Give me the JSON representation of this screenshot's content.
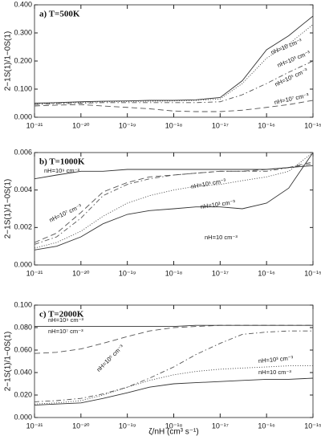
{
  "chart_data": [
    {
      "type": "line",
      "title": "a) T=500K",
      "ylabel": "2−1S(1)/1−0S(1)",
      "xscale": "log",
      "x": [
        1e-21,
        3e-21,
        1e-20,
        3e-20,
        1e-19,
        3e-19,
        1e-18,
        3e-18,
        1e-17,
        3e-17,
        1e-16,
        3e-16,
        1e-15
      ],
      "xlim": [
        1e-21,
        1e-15
      ],
      "xticks": [
        {
          "value": 1e-21,
          "label": "10⁻²¹"
        },
        {
          "value": 1e-20,
          "label": "10⁻²⁰"
        },
        {
          "value": 1e-19,
          "label": "10⁻¹⁹"
        },
        {
          "value": 1e-18,
          "label": "10⁻¹⁸"
        },
        {
          "value": 1e-17,
          "label": "10⁻¹⁷"
        },
        {
          "value": 1e-16,
          "label": "10⁻¹⁶"
        },
        {
          "value": 1e-15,
          "label": "10⁻¹⁵"
        }
      ],
      "ylim": [
        0,
        0.4
      ],
      "yticks": [
        {
          "value": 0,
          "label": "0.000"
        },
        {
          "value": 0.1,
          "label": "0.100"
        },
        {
          "value": 0.2,
          "label": "0.200"
        },
        {
          "value": 0.3,
          "label": "0.300"
        },
        {
          "value": 0.4,
          "label": "0.400"
        }
      ],
      "series": [
        {
          "name": "nH=10 cm⁻³",
          "color": "#333333",
          "style": "solid",
          "values": [
            0.05,
            0.052,
            0.055,
            0.057,
            0.058,
            0.06,
            0.06,
            0.062,
            0.07,
            0.13,
            0.24,
            0.29,
            0.36
          ]
        },
        {
          "name": "nH=10³ cm⁻³",
          "color": "#555555",
          "style": "dotted",
          "values": [
            0.048,
            0.05,
            0.053,
            0.055,
            0.056,
            0.057,
            0.058,
            0.06,
            0.065,
            0.12,
            0.21,
            0.26,
            0.33
          ]
        },
        {
          "name": "nH=10⁵ cm⁻³",
          "color": "#555555",
          "style": "dashdot",
          "values": [
            0.045,
            0.048,
            0.05,
            0.052,
            0.052,
            0.052,
            0.052,
            0.052,
            0.055,
            0.08,
            0.12,
            0.16,
            0.2
          ]
        },
        {
          "name": "nH=10⁷ cm⁻³",
          "color": "#555555",
          "style": "dashed",
          "values": [
            0.04,
            0.043,
            0.045,
            0.04,
            0.035,
            0.03,
            0.022,
            0.02,
            0.02,
            0.025,
            0.035,
            0.045,
            0.06
          ]
        }
      ]
    },
    {
      "type": "line",
      "title": "b) T=1000K",
      "ylabel": "2−1S(1)/1−0S(1)",
      "xscale": "log",
      "x": [
        1e-21,
        3e-21,
        1e-20,
        3e-20,
        1e-19,
        3e-19,
        1e-18,
        3e-18,
        1e-17,
        3e-17,
        1e-16,
        3e-16,
        1e-15
      ],
      "xlim": [
        1e-21,
        1e-15
      ],
      "xticks": [
        {
          "value": 1e-21,
          "label": "10⁻²¹"
        },
        {
          "value": 1e-20,
          "label": "10⁻²⁰"
        },
        {
          "value": 1e-19,
          "label": "10⁻¹⁹"
        },
        {
          "value": 1e-18,
          "label": "10⁻¹⁸"
        },
        {
          "value": 1e-17,
          "label": "10⁻¹⁷"
        },
        {
          "value": 1e-16,
          "label": "10⁻¹⁶"
        },
        {
          "value": 1e-15,
          "label": "10⁻¹⁵"
        }
      ],
      "ylim": [
        0,
        0.006
      ],
      "yticks": [
        {
          "value": 0,
          "label": "0.000"
        },
        {
          "value": 0.002,
          "label": "0.002"
        },
        {
          "value": 0.004,
          "label": "0.004"
        },
        {
          "value": 0.006,
          "label": "0.006"
        }
      ],
      "series": [
        {
          "name": "nH=10 cm⁻³",
          "color": "#333333",
          "style": "solid",
          "values": [
            0.0008,
            0.001,
            0.0015,
            0.0022,
            0.0027,
            0.0029,
            0.003,
            0.0031,
            0.0031,
            0.003,
            0.0033,
            0.0041,
            0.006
          ]
        },
        {
          "name": "nH=10³ cm⁻³",
          "color": "#555555",
          "style": "dotted",
          "values": [
            0.0009,
            0.0012,
            0.0018,
            0.0026,
            0.0033,
            0.0037,
            0.004,
            0.0042,
            0.0043,
            0.0045,
            0.0047,
            0.005,
            0.006
          ]
        },
        {
          "name": "nH=10⁵ cm⁻³",
          "color": "#555555",
          "style": "dashdot",
          "values": [
            0.0011,
            0.0015,
            0.0025,
            0.0037,
            0.0043,
            0.0046,
            0.0048,
            0.0049,
            0.005,
            0.005,
            0.005,
            0.0052,
            0.0054
          ]
        },
        {
          "name": "nH=10⁷ cm⁻³",
          "color": "#555555",
          "style": "dashed",
          "values": [
            0.0012,
            0.0017,
            0.0028,
            0.0039,
            0.0044,
            0.0047,
            0.0048,
            0.0049,
            0.005,
            0.005,
            0.0051,
            0.0052,
            0.0055
          ]
        },
        {
          "name": "nH=10⁹ cm⁻³",
          "color": "#333333",
          "style": "solid",
          "values": [
            0.0046,
            0.0048,
            0.005,
            0.005,
            0.0051,
            0.0051,
            0.0051,
            0.0051,
            0.0051,
            0.0051,
            0.0051,
            0.0052,
            0.0053
          ]
        }
      ]
    },
    {
      "type": "line",
      "title": "c) T=2000K",
      "ylabel": "2−1S(1)/1−0S(1)",
      "xlabel": "ζ/nH  (cm³ s⁻¹)",
      "xscale": "log",
      "x": [
        1e-21,
        3e-21,
        1e-20,
        3e-20,
        1e-19,
        3e-19,
        1e-18,
        3e-18,
        1e-17,
        3e-17,
        1e-16,
        3e-16,
        1e-15
      ],
      "xlim": [
        1e-21,
        1e-15
      ],
      "xticks": [
        {
          "value": 1e-21,
          "label": "10⁻²¹"
        },
        {
          "value": 1e-20,
          "label": "10⁻²⁰"
        },
        {
          "value": 1e-19,
          "label": "10⁻¹⁹"
        },
        {
          "value": 1e-18,
          "label": "10⁻¹⁸"
        },
        {
          "value": 1e-17,
          "label": "10⁻¹⁷"
        },
        {
          "value": 1e-16,
          "label": "10⁻¹⁶"
        },
        {
          "value": 1e-15,
          "label": "10⁻¹⁵"
        }
      ],
      "ylim": [
        0,
        0.1
      ],
      "yticks": [
        {
          "value": 0,
          "label": "0.000"
        },
        {
          "value": 0.02,
          "label": "0.020"
        },
        {
          "value": 0.04,
          "label": "0.040"
        },
        {
          "value": 0.06,
          "label": "0.060"
        },
        {
          "value": 0.08,
          "label": "0.080"
        },
        {
          "value": 0.1,
          "label": "0.100"
        }
      ],
      "series": [
        {
          "name": "nH=10 cm⁻³",
          "color": "#333333",
          "style": "solid",
          "values": [
            0.011,
            0.012,
            0.013,
            0.017,
            0.022,
            0.027,
            0.03,
            0.031,
            0.032,
            0.033,
            0.034,
            0.034,
            0.035
          ]
        },
        {
          "name": "nH=10³ cm⁻³",
          "color": "#555555",
          "style": "dotted",
          "values": [
            0.012,
            0.013,
            0.015,
            0.02,
            0.027,
            0.033,
            0.038,
            0.041,
            0.043,
            0.044,
            0.045,
            0.046,
            0.046
          ]
        },
        {
          "name": "nH=10⁵ cm⁻³",
          "color": "#555555",
          "style": "dashdot",
          "values": [
            0.014,
            0.015,
            0.017,
            0.021,
            0.027,
            0.035,
            0.045,
            0.056,
            0.066,
            0.074,
            0.076,
            0.077,
            0.077
          ]
        },
        {
          "name": "nH=10⁷ cm⁻³",
          "color": "#555555",
          "style": "dashed",
          "values": [
            0.057,
            0.058,
            0.061,
            0.066,
            0.072,
            0.077,
            0.08,
            0.081,
            0.082,
            0.082,
            0.082,
            0.082,
            0.082
          ]
        },
        {
          "name": "nH=10⁹ cm⁻³",
          "color": "#333333",
          "style": "solid",
          "values": [
            0.081,
            0.081,
            0.081,
            0.081,
            0.081,
            0.081,
            0.081,
            0.082,
            0.082,
            0.082,
            0.082,
            0.082,
            0.082
          ]
        }
      ]
    }
  ]
}
